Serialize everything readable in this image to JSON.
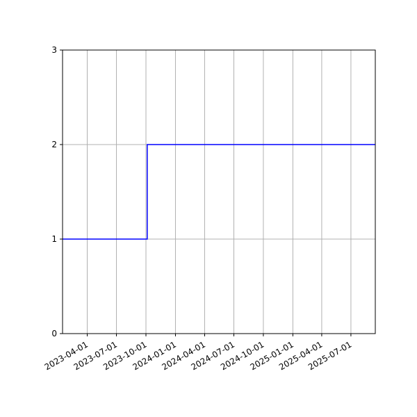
{
  "chart_data": {
    "type": "line",
    "step": true,
    "title": "",
    "xlabel": "",
    "ylabel": "",
    "x_axis_type": "date",
    "xlim": [
      "2023-01-14",
      "2025-09-15"
    ],
    "ylim": [
      0,
      3
    ],
    "x_ticks": [
      "2023-04-01",
      "2023-07-01",
      "2023-10-01",
      "2024-01-01",
      "2024-04-01",
      "2024-07-01",
      "2024-10-01",
      "2025-01-01",
      "2025-04-01",
      "2025-07-01"
    ],
    "y_ticks": [
      "0",
      "1",
      "2",
      "3"
    ],
    "grid": true,
    "legend": "none",
    "colors": {
      "line": "#0000ff",
      "grid": "#b0b0b0",
      "axes": "#000000"
    },
    "series": [
      {
        "x": [
          "2023-01-14",
          "2023-10-05",
          "2025-09-15"
        ],
        "y": [
          1,
          2,
          2
        ]
      }
    ]
  }
}
